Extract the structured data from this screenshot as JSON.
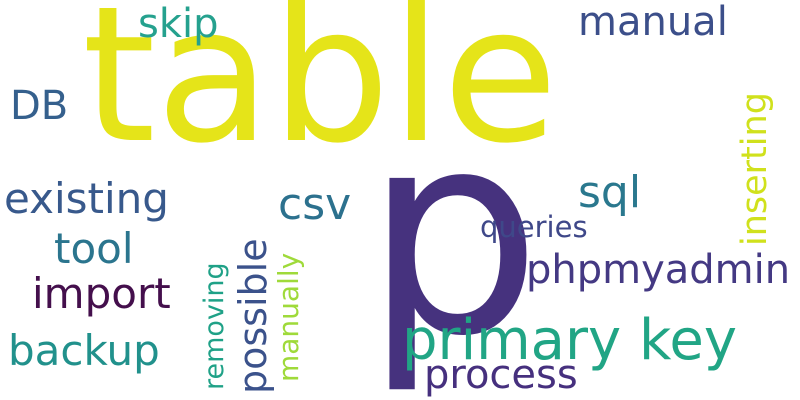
{
  "words": {
    "table": {
      "text": "table",
      "color": "#e5e419"
    },
    "p": {
      "text": "p",
      "color": "#46327e"
    },
    "primary_key": {
      "text": "primary key",
      "color": "#21a585"
    },
    "skip": {
      "text": "skip",
      "color": "#25a18e"
    },
    "manual": {
      "text": "manual",
      "color": "#3c4f8a"
    },
    "db": {
      "text": "DB",
      "color": "#35608d"
    },
    "existing": {
      "text": "existing",
      "color": "#38598c"
    },
    "csv": {
      "text": "csv",
      "color": "#2c718e"
    },
    "sql": {
      "text": "sql",
      "color": "#2a788e"
    },
    "tool": {
      "text": "tool",
      "color": "#2b758e"
    },
    "queries": {
      "text": "queries",
      "color": "#3f4889"
    },
    "phpmyadmin": {
      "text": "phpmyadmin",
      "color": "#443983"
    },
    "import": {
      "text": "import",
      "color": "#440f4c"
    },
    "backup": {
      "text": "backup",
      "color": "#21918c"
    },
    "process": {
      "text": "process",
      "color": "#46307e"
    },
    "inserting": {
      "text": "inserting",
      "color": "#d0e11c"
    },
    "possible": {
      "text": "possible",
      "color": "#3b528b"
    },
    "removing": {
      "text": "removing",
      "color": "#1fa187"
    },
    "manually": {
      "text": "manually",
      "color": "#9fda3a"
    }
  }
}
